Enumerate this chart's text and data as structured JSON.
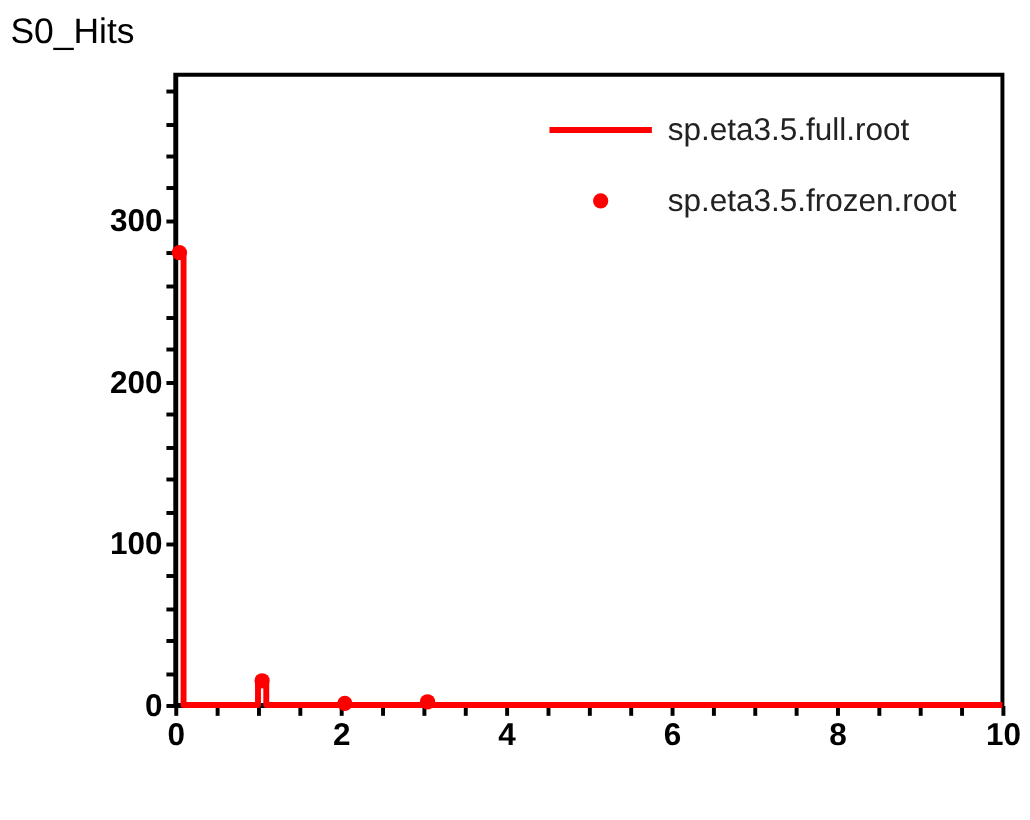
{
  "chart_data": {
    "type": "step",
    "title": "S0_Hits",
    "xlim": [
      0,
      10
    ],
    "xticks": [
      0,
      {
        "value": 0.5,
        "label": null
      },
      {
        "value": 1,
        "label": null
      },
      {
        "value": 1.5,
        "label": null
      },
      2,
      {
        "value": 2.5,
        "label": null
      },
      {
        "value": 3,
        "label": null
      },
      {
        "value": 3.5,
        "label": null
      },
      4,
      {
        "value": 4.5,
        "label": null
      },
      {
        "value": 5,
        "label": null
      },
      {
        "value": 5.5,
        "label": null
      },
      6,
      {
        "value": 6.5,
        "label": null
      },
      {
        "value": 7,
        "label": null
      },
      {
        "value": 7.5,
        "label": null
      },
      8,
      {
        "value": 8.5,
        "label": null
      },
      {
        "value": 9,
        "label": null
      },
      {
        "value": 9.5,
        "label": null
      },
      10
    ],
    "ylim": [
      0,
      390
    ],
    "yticks": [
      0,
      {
        "value": 20,
        "label": null
      },
      {
        "value": 40,
        "label": null
      },
      {
        "value": 60,
        "label": null
      },
      {
        "value": 80,
        "label": null
      },
      100,
      {
        "value": 120,
        "label": null
      },
      {
        "value": 140,
        "label": null
      },
      {
        "value": 160,
        "label": null
      },
      {
        "value": 180,
        "label": null
      },
      200,
      {
        "value": 220,
        "label": null
      },
      {
        "value": 240,
        "label": null
      },
      {
        "value": 260,
        "label": null
      },
      {
        "value": 280,
        "label": null
      },
      300,
      {
        "value": 320,
        "label": null
      },
      {
        "value": 340,
        "label": null
      },
      {
        "value": 360,
        "label": null
      },
      {
        "value": 380,
        "label": null
      }
    ],
    "grid": false,
    "legend": "top right",
    "series": [
      {
        "name": "sp.eta3.5.full.root",
        "color": "#ff0000",
        "marker": "none",
        "x": [
          0,
          0.1,
          1,
          1.1,
          10
        ],
        "values": [
          280,
          0,
          13,
          0,
          0
        ]
      },
      {
        "name": "sp.eta3.5.frozen.root",
        "type": "scatter",
        "color": "#ff0000",
        "marker": "circle",
        "x": [
          0.05,
          1.05,
          2.05,
          3.05
        ],
        "values": [
          280,
          15,
          1,
          2
        ]
      }
    ]
  }
}
